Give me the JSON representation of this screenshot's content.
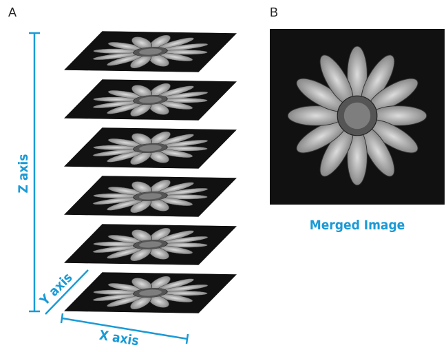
{
  "panel_a": {
    "label": "A",
    "z_axis": "Z axis",
    "y_axis": "Y axis",
    "x_axis": "X axis"
  },
  "panel_b": {
    "label": "B",
    "caption": "Merged Image"
  }
}
